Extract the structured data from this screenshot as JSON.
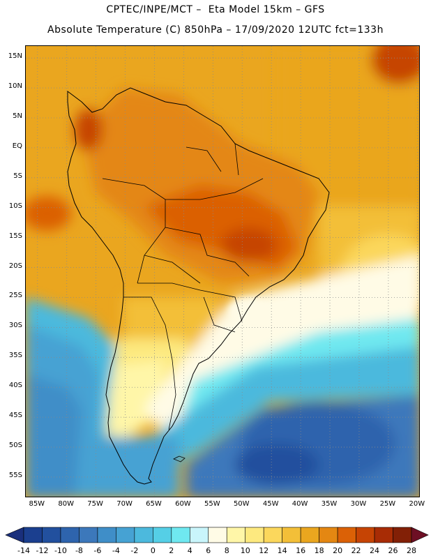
{
  "header": {
    "line1": "CPTEC/INPE/MCT –  Eta Model 15km – GFS",
    "line2": "Absolute Temperature (C) 850hPa – 17/09/2020 12UTC fct=133h"
  },
  "map": {
    "lon_min": -87,
    "lon_max": -19.5,
    "lat_min": -58.5,
    "lat_max": 17,
    "lat_labels": [
      "15N",
      "10N",
      "5N",
      "EQ",
      "5S",
      "10S",
      "15S",
      "20S",
      "25S",
      "30S",
      "35S",
      "40S",
      "45S",
      "50S",
      "55S"
    ],
    "lat_values": [
      15,
      10,
      5,
      0,
      -5,
      -10,
      -15,
      -20,
      -25,
      -30,
      -35,
      -40,
      -45,
      -50,
      -55
    ],
    "lon_labels": [
      "85W",
      "80W",
      "75W",
      "70W",
      "65W",
      "60W",
      "55W",
      "50W",
      "45W",
      "40W",
      "35W",
      "30W",
      "25W",
      "20W"
    ],
    "lon_values": [
      -85,
      -80,
      -75,
      -70,
      -65,
      -60,
      -55,
      -50,
      -45,
      -40,
      -35,
      -30,
      -25,
      -20
    ],
    "grid": true
  },
  "colorbar": {
    "ticks": [
      "-14",
      "-12",
      "-10",
      "-8",
      "-6",
      "-4",
      "-2",
      "0",
      "2",
      "4",
      "6",
      "8",
      "10",
      "12",
      "14",
      "16",
      "18",
      "20",
      "22",
      "24",
      "26",
      "28"
    ],
    "colors": [
      "#1b3f8f",
      "#22509e",
      "#2e64ad",
      "#3c78bb",
      "#3f8ec8",
      "#46a2d3",
      "#4cb9dd",
      "#55cfe6",
      "#6fe8f0",
      "#c9f5fb",
      "#fffbe6",
      "#fff6a8",
      "#fde97f",
      "#fbd75c",
      "#f3bf38",
      "#eaa61f",
      "#e48712",
      "#db6106",
      "#c64404",
      "#a82c05",
      "#822006"
    ],
    "underflow_color": "#1a2f7c",
    "overflow_color": "#6d0f24"
  }
}
